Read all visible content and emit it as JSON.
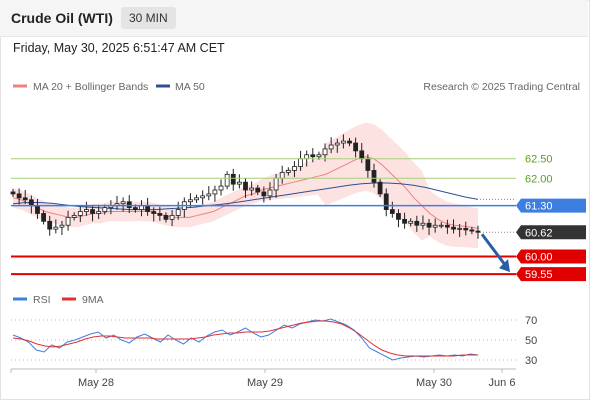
{
  "header": {
    "title": "Crude Oil (WTI)",
    "timeframe": "30 MIN"
  },
  "datetime": "Friday, May 30, 2025 6:51:47 AM CET",
  "legend": {
    "ma20": "MA 20 + Bollinger Bands",
    "ma50": "MA 50",
    "credit": "Research © 2025 Trading Central"
  },
  "rsi_legend": {
    "rsi": "RSI",
    "ma9": "9MA"
  },
  "colors": {
    "ma20": "#f08080",
    "bollinger_fill": "#fde2e2",
    "ma50": "#2f4f8f",
    "resistance": "#a6cf7a",
    "resistance_text": "#5a9e1a",
    "pivot": "#3d7fe0",
    "support": "#e00000",
    "last_price": "#333333",
    "arrow": "#2a5da8",
    "candle_up": "#ffffff",
    "candle_down": "#222222",
    "rsi_line": "#3d7fe0",
    "rsi_ma": "#e03030"
  },
  "chart_data": [
    {
      "type": "candlestick",
      "title": "Crude Oil (WTI)",
      "x_labels": [
        "May 28",
        "May 29",
        "May 30",
        "Jun 6"
      ],
      "levels": [
        {
          "name": "resistance",
          "value": 62.5
        },
        {
          "name": "resistance",
          "value": 62.0
        },
        {
          "name": "pivot",
          "value": 61.3
        },
        {
          "name": "last",
          "value": 60.62
        },
        {
          "name": "support",
          "value": 60.0
        },
        {
          "name": "support",
          "value": 59.55
        }
      ],
      "level_labels": [
        "62.50",
        "62.00",
        "61.30",
        "60.62",
        "60.00",
        "59.55"
      ],
      "ylim": [
        59.4,
        64.0
      ],
      "close": [
        61.6,
        61.5,
        61.45,
        61.3,
        61.1,
        60.9,
        60.7,
        60.75,
        60.8,
        61.0,
        61.05,
        61.15,
        61.2,
        61.1,
        61.15,
        61.25,
        61.3,
        61.35,
        61.4,
        61.25,
        61.2,
        61.3,
        61.15,
        61.1,
        61.05,
        60.95,
        61.05,
        61.2,
        61.4,
        61.45,
        61.5,
        61.55,
        61.6,
        61.7,
        61.8,
        62.1,
        61.85,
        61.9,
        61.7,
        61.75,
        61.65,
        61.55,
        61.7,
        62.0,
        62.15,
        62.2,
        62.3,
        62.5,
        62.6,
        62.55,
        62.6,
        62.75,
        62.85,
        62.9,
        62.95,
        62.9,
        62.7,
        62.5,
        62.2,
        61.9,
        61.6,
        61.2,
        61.1,
        60.95,
        60.85,
        60.9,
        60.8,
        60.85,
        60.75,
        60.8,
        60.8,
        60.75,
        60.7,
        60.72,
        60.68,
        60.65,
        60.62
      ],
      "ma20": [
        61.5,
        61.45,
        61.35,
        61.25,
        61.15,
        61.1,
        61.05,
        61.0,
        61.0,
        61.05,
        61.1,
        61.1,
        61.15,
        61.15,
        61.15,
        61.15,
        61.15,
        61.15,
        61.1,
        61.05,
        61.0,
        61.0,
        61.0,
        61.05,
        61.1,
        61.15,
        61.25,
        61.35,
        61.45,
        61.55,
        61.6,
        61.7,
        61.75,
        61.8,
        61.85,
        61.9,
        61.95,
        62.0,
        62.05,
        62.1,
        62.2,
        62.3,
        62.4,
        62.5,
        62.55,
        62.5,
        62.35,
        62.15,
        61.95,
        61.75,
        61.5,
        61.3,
        61.1,
        60.95,
        60.85,
        60.8,
        60.78,
        60.75,
        60.72
      ],
      "ma50": [
        61.35,
        61.38,
        61.38,
        61.36,
        61.32,
        61.28,
        61.26,
        61.24,
        61.22,
        61.2,
        61.2,
        61.2,
        61.22,
        61.24,
        61.26,
        61.3,
        61.33,
        61.37,
        61.42,
        61.47,
        61.52,
        61.57,
        61.62,
        61.67,
        61.72,
        61.77,
        61.82,
        61.86,
        61.88,
        61.88,
        61.86,
        61.82,
        61.76,
        61.68,
        61.6,
        61.52,
        61.46
      ]
    },
    {
      "type": "line",
      "title": "RSI",
      "ylim": [
        25,
        75
      ],
      "y_ticks": [
        "70",
        "50",
        "30"
      ],
      "series": [
        {
          "name": "RSI",
          "values": [
            55,
            52,
            48,
            40,
            38,
            45,
            42,
            48,
            50,
            53,
            56,
            58,
            52,
            55,
            50,
            47,
            53,
            56,
            52,
            48,
            55,
            50,
            46,
            52,
            48,
            54,
            58,
            60,
            55,
            58,
            62,
            57,
            53,
            55,
            60,
            65,
            62,
            66,
            68,
            70,
            69,
            71,
            68,
            65,
            60,
            52,
            42,
            38,
            34,
            30,
            32,
            33,
            34,
            33,
            34,
            35,
            34,
            35,
            34,
            36,
            35
          ]
        },
        {
          "name": "9MA",
          "values": [
            52,
            51,
            49,
            46,
            44,
            43,
            44,
            46,
            48,
            51,
            53,
            54,
            54,
            53,
            52,
            52,
            52,
            52,
            51,
            51,
            51,
            51,
            51,
            52,
            53,
            55,
            56,
            57,
            57,
            58,
            58,
            58,
            59,
            61,
            63,
            65,
            67,
            68,
            69,
            69,
            68,
            66,
            62,
            57,
            51,
            45,
            40,
            37,
            35,
            34,
            34,
            34,
            34,
            34,
            34,
            34,
            35,
            35,
            35
          ]
        }
      ]
    }
  ]
}
